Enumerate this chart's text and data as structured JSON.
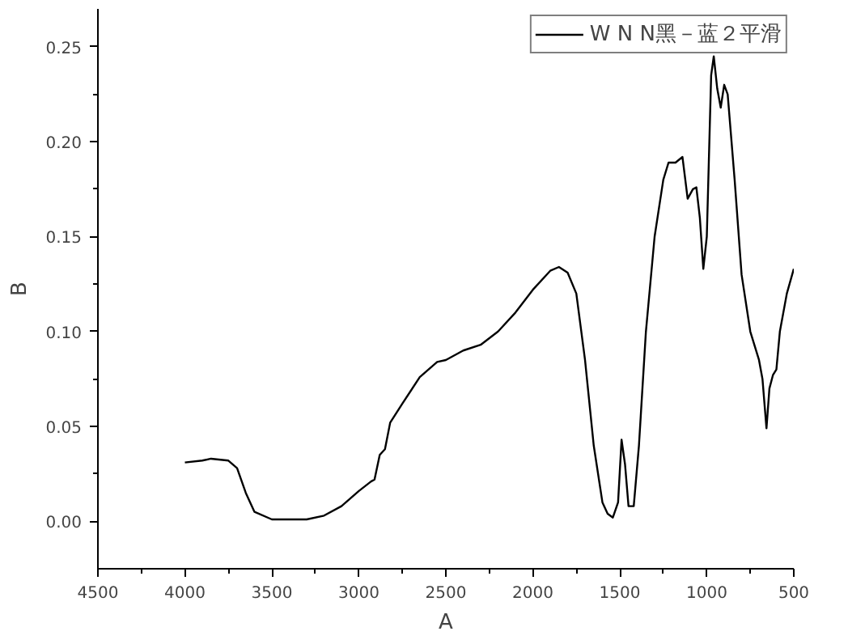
{
  "chart_data": {
    "type": "line",
    "xlabel": "A",
    "ylabel": "B",
    "x": [
      4000,
      3900,
      3850,
      3750,
      3700,
      3650,
      3600,
      3500,
      3300,
      3200,
      3100,
      3000,
      2930,
      2910,
      2880,
      2850,
      2820,
      2750,
      2650,
      2550,
      2500,
      2400,
      2300,
      2200,
      2100,
      2000,
      1900,
      1850,
      1800,
      1750,
      1700,
      1650,
      1600,
      1570,
      1540,
      1510,
      1490,
      1470,
      1450,
      1420,
      1390,
      1350,
      1300,
      1250,
      1220,
      1180,
      1140,
      1110,
      1080,
      1060,
      1040,
      1020,
      1000,
      975,
      960,
      940,
      920,
      900,
      880,
      840,
      800,
      750,
      700,
      680,
      657,
      640,
      620,
      600,
      580,
      540,
      500
    ],
    "series": [
      {
        "name": "W N N黑－蓝２平滑",
        "color": "#000000",
        "values": [
          0.031,
          0.032,
          0.033,
          0.032,
          0.028,
          0.015,
          0.005,
          0.001,
          0.001,
          0.003,
          0.008,
          0.016,
          0.021,
          0.022,
          0.035,
          0.038,
          0.052,
          0.062,
          0.076,
          0.084,
          0.085,
          0.09,
          0.093,
          0.1,
          0.11,
          0.122,
          0.132,
          0.134,
          0.131,
          0.12,
          0.085,
          0.04,
          0.01,
          0.004,
          0.002,
          0.01,
          0.043,
          0.03,
          0.008,
          0.008,
          0.04,
          0.1,
          0.15,
          0.18,
          0.189,
          0.189,
          0.192,
          0.17,
          0.175,
          0.176,
          0.16,
          0.133,
          0.15,
          0.235,
          0.245,
          0.228,
          0.218,
          0.23,
          0.225,
          0.18,
          0.13,
          0.1,
          0.085,
          0.075,
          0.049,
          0.07,
          0.077,
          0.08,
          0.1,
          0.12,
          0.133
        ]
      }
    ],
    "xlim": [
      4500,
      500
    ],
    "ylim": [
      -0.025,
      0.27
    ],
    "xticks": [
      4500,
      4000,
      3500,
      3000,
      2500,
      2000,
      1500,
      1000,
      500
    ],
    "yticks": [
      {
        "value": 0,
        "label": "0.00"
      },
      {
        "value": 0.05,
        "label": "0.05"
      },
      {
        "value": 0.1,
        "label": "0.10"
      },
      {
        "value": 0.15,
        "label": "0.15"
      },
      {
        "value": 0.2,
        "label": "0.20"
      },
      {
        "value": 0.25,
        "label": "0.25"
      }
    ],
    "grid": false,
    "legend": "top right",
    "marker": "none",
    "line_style": "solid"
  }
}
